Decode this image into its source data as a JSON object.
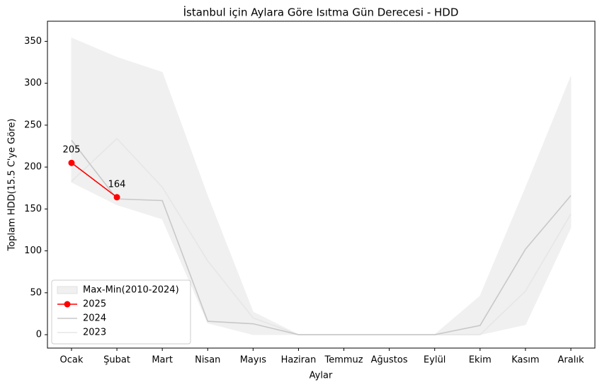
{
  "chart_data": {
    "type": "line",
    "title": "İstanbul için Aylara Göre Isıtma Gün Derecesi - HDD",
    "xlabel": "Aylar",
    "ylabel": "Toplam HDD(15.5 C'ye Göre)",
    "categories": [
      "Ocak",
      "Şubat",
      "Mart",
      "Nisan",
      "Mayıs",
      "Haziran",
      "Temmuz",
      "Ağustos",
      "Eylül",
      "Ekim",
      "Kasım",
      "Aralık"
    ],
    "band": {
      "name": "Max-Min(2010-2024)",
      "color": "#f0f0f0",
      "upper": [
        354,
        331,
        313,
        165,
        27,
        0,
        0,
        0,
        0,
        46,
        175,
        308
      ],
      "lower": [
        182,
        155,
        138,
        14,
        0,
        0,
        0,
        0,
        0,
        0,
        12,
        128
      ]
    },
    "series": [
      {
        "name": "2025",
        "color": "#ff0000",
        "values": [
          205,
          164,
          null,
          null,
          null,
          null,
          null,
          null,
          null,
          null,
          null,
          null
        ],
        "markers": true,
        "value_labels": [
          205,
          164,
          null,
          null,
          null,
          null,
          null,
          null,
          null,
          null,
          null,
          null
        ]
      },
      {
        "name": "2024",
        "color": "#c8c8c8",
        "values": [
          232,
          162,
          160,
          16,
          13,
          0,
          0,
          0,
          0,
          11,
          102,
          166
        ]
      },
      {
        "name": "2023",
        "color": "#e6e6e6",
        "values": [
          183,
          234,
          176,
          88,
          20,
          0,
          0,
          0,
          0,
          0,
          52,
          144
        ]
      }
    ],
    "ylim": [
      -16,
      374
    ],
    "yticks": [
      0,
      50,
      100,
      150,
      200,
      250,
      300,
      350
    ],
    "legend": "lower left",
    "grid": false
  }
}
